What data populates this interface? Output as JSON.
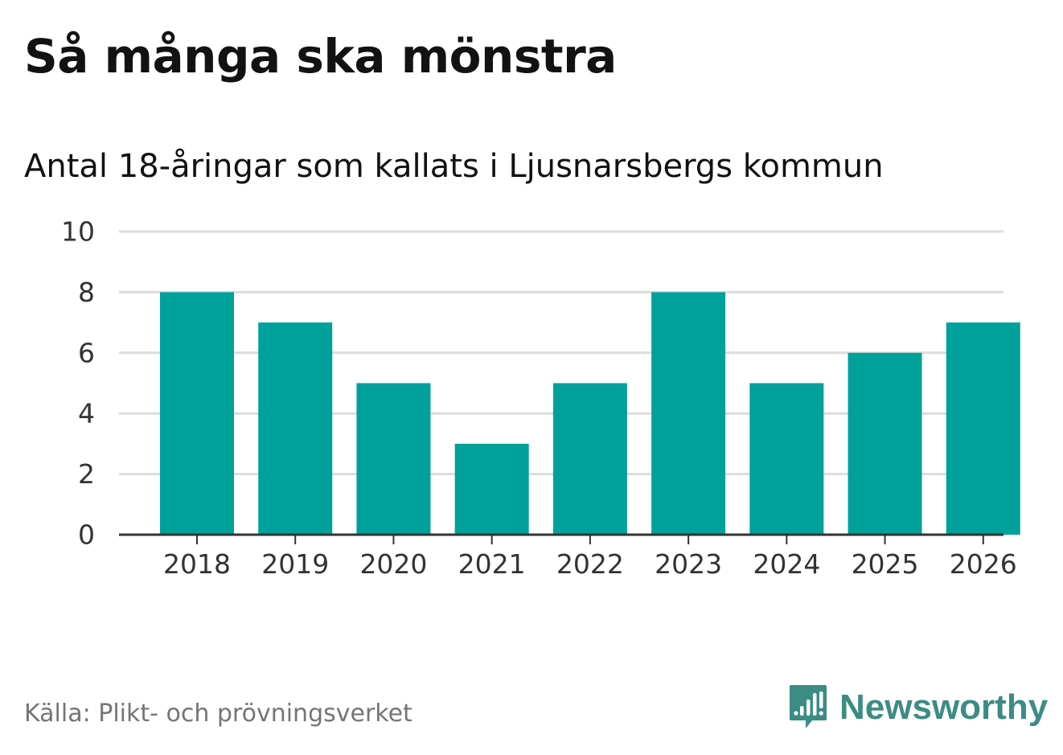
{
  "title": "Så många ska mönstra",
  "subtitle": "Antal 18-åringar som kallats i Ljusnarsbergs kommun",
  "source": "Källa: Plikt- och prövningsverket",
  "brand": {
    "name": "Newsworthy",
    "icon": "newsworthy-logo-icon",
    "color": "#3c8c84"
  },
  "colors": {
    "bar": "#00a19b",
    "grid": "#dcdcdc",
    "axis": "#333333"
  },
  "chart_data": {
    "type": "bar",
    "title": "Så många ska mönstra",
    "subtitle": "Antal 18-åringar som kallats i Ljusnarsbergs kommun",
    "xlabel": "",
    "ylabel": "",
    "categories": [
      "2018",
      "2019",
      "2020",
      "2021",
      "2022",
      "2023",
      "2024",
      "2025",
      "2026"
    ],
    "values": [
      8,
      7,
      5,
      3,
      5,
      8,
      5,
      6,
      7
    ],
    "ylim": [
      0,
      10
    ],
    "yticks": [
      0,
      2,
      4,
      6,
      8,
      10
    ],
    "grid": true,
    "legend": "none"
  }
}
